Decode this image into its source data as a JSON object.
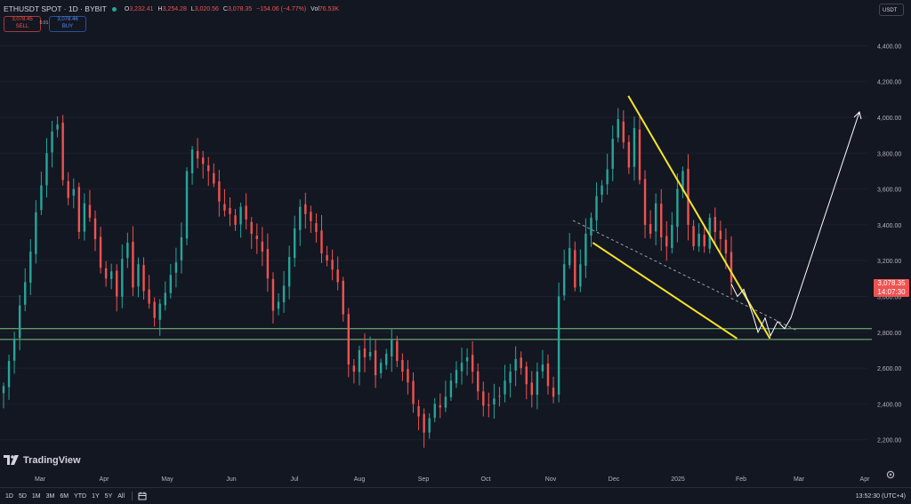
{
  "header": {
    "symbol": "ETHUSDT SPOT · 1D · BYBIT",
    "open_label": "O",
    "open": "3,232.41",
    "high_label": "H",
    "high": "3,254.28",
    "low_label": "L",
    "low": "3,020.56",
    "close_label": "C",
    "close": "3,078.35",
    "change": "−154.06 (−4.77%)",
    "vol_label": "Vol",
    "vol": "76.53K"
  },
  "trade": {
    "sell_price": "3,078.45",
    "sell_label": "SELL",
    "spread": "0.01",
    "buy_price": "3,078.46",
    "buy_label": "BUY"
  },
  "currency": "USDT",
  "price_scale": [
    "4,400.00",
    "4,200.00",
    "4,000.00",
    "3,800.00",
    "3,600.00",
    "3,400.00",
    "3,200.00",
    "3,000.00",
    "2,800.00",
    "2,600.00",
    "2,400.00",
    "2,200.00"
  ],
  "last_price": {
    "price": "3,078.35",
    "countdown": "14:07:30"
  },
  "time_scale": [
    "Mar",
    "Apr",
    "May",
    "Jun",
    "Jul",
    "Aug",
    "Sep",
    "Oct",
    "Nov",
    "Dec",
    "2025",
    "Feb",
    "Mar",
    "Apr"
  ],
  "logo_text": "TradingView",
  "bottom_bar": {
    "ranges": [
      "1D",
      "5D",
      "1M",
      "3M",
      "6M",
      "YTD",
      "1Y",
      "5Y",
      "All"
    ],
    "clock": "13:52:30 (UTC+4)"
  },
  "colors": {
    "up": "#26a69a",
    "down": "#ef5350",
    "background": "#131722",
    "zone_line": "#7ec77a",
    "wedge": "#f5e52a",
    "projection": "#ffffff"
  },
  "icons": {
    "logo": "tradingview-logo-icon",
    "calendar": "calendar-icon",
    "settings": "gear-icon",
    "live": "live-dot-icon"
  },
  "chart_data": {
    "type": "candlestick",
    "interval": "1D",
    "yrange": [
      2100,
      4500
    ],
    "months": [
      "Mar",
      "Apr",
      "May",
      "Jun",
      "Jul",
      "Aug",
      "Sep",
      "Oct",
      "Nov",
      "Dec",
      "2025",
      "Feb",
      "Mar",
      "Apr"
    ],
    "closes": [
      2500,
      2640,
      2760,
      2950,
      3080,
      3250,
      3470,
      3620,
      3800,
      3920,
      3960,
      3650,
      3550,
      3600,
      3360,
      3520,
      3440,
      3320,
      3160,
      3100,
      3140,
      3000,
      3210,
      3300,
      3050,
      3180,
      3030,
      2960,
      2880,
      2960,
      3020,
      3120,
      3190,
      3330,
      3700,
      3820,
      3770,
      3740,
      3700,
      3630,
      3530,
      3480,
      3460,
      3400,
      3500,
      3430,
      3350,
      3320,
      3250,
      3100,
      2920,
      2970,
      3060,
      3220,
      3380,
      3500,
      3460,
      3420,
      3360,
      3240,
      3200,
      3150,
      3080,
      2900,
      2620,
      2580,
      2700,
      2660,
      2690,
      2560,
      2630,
      2680,
      2760,
      2640,
      2580,
      2520,
      2400,
      2330,
      2240,
      2320,
      2400,
      2380,
      2440,
      2530,
      2590,
      2630,
      2660,
      2580,
      2470,
      2390,
      2390,
      2430,
      2440,
      2530,
      2580,
      2650,
      2600,
      2510,
      2450,
      2580,
      2620,
      2500,
      2440,
      3000,
      3180,
      3270,
      3050,
      3180,
      3350,
      3440,
      3560,
      3620,
      3710,
      3880,
      3990,
      3860,
      3720,
      3940,
      3650,
      3400,
      3350,
      3520,
      3330,
      3280,
      3400,
      3600,
      3700,
      3400,
      3280,
      3350,
      3280,
      3440,
      3360,
      3320,
      3240,
      3078
    ],
    "annotations": {
      "support_zone": [
        2760,
        2820
      ],
      "wedge_upper": {
        "from": "2024-12-09",
        "from_value": 4120,
        "to": "2025-02-16",
        "to_value": 2765
      },
      "wedge_lower": {
        "from": "2024-11-22",
        "from_value": 3300,
        "to": "2025-01-31",
        "to_value": 2765
      },
      "projection_path": [
        3070,
        3000,
        3040,
        2900,
        2800,
        2880,
        2780,
        2860,
        2820,
        2880,
        4030
      ]
    }
  }
}
